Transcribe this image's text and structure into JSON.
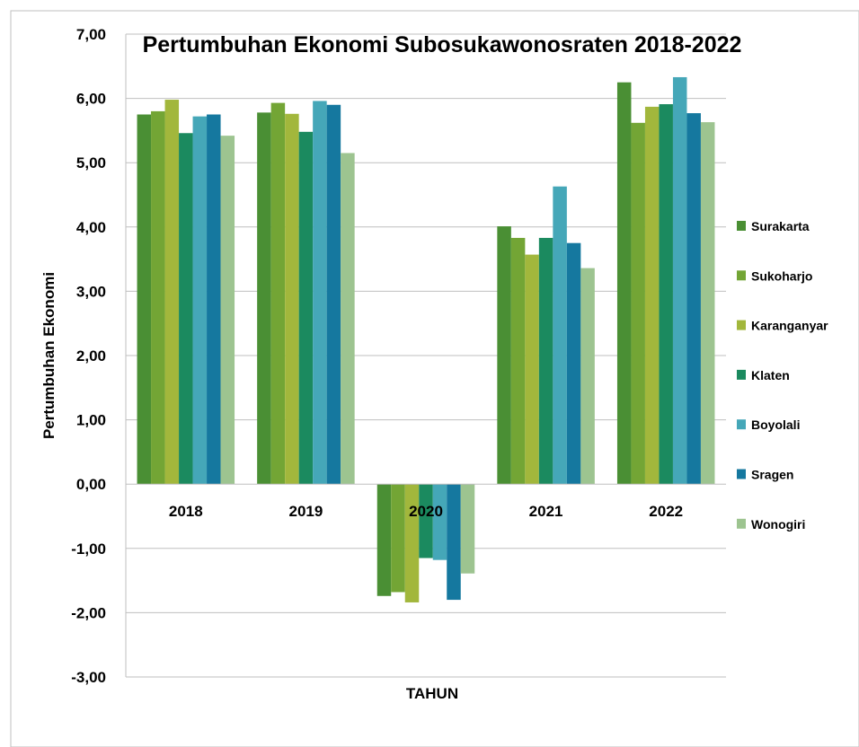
{
  "chart_data": {
    "type": "bar",
    "title": "Pertumbuhan Ekonomi Subosukawonosraten 2018-2022",
    "xlabel": "TAHUN",
    "ylabel": "Pertumbuhan Ekonomi",
    "ylim": [
      -3,
      7
    ],
    "yticks": [
      "7,00",
      "6,00",
      "5,00",
      "4,00",
      "3,00",
      "2,00",
      "1,00",
      "0,00",
      "-1,00",
      "-2,00",
      "-3,00"
    ],
    "categories": [
      "2018",
      "2019",
      "2020",
      "2021",
      "2022"
    ],
    "grid": true,
    "legend_position": "right",
    "series": [
      {
        "name": "Surakarta",
        "color": "#4a8f34",
        "values": [
          5.75,
          5.78,
          -1.74,
          4.01,
          6.25
        ]
      },
      {
        "name": "Sukoharjo",
        "color": "#73a535",
        "values": [
          5.8,
          5.93,
          -1.68,
          3.83,
          5.62
        ]
      },
      {
        "name": "Karanganyar",
        "color": "#a2b73c",
        "values": [
          5.98,
          5.76,
          -1.84,
          3.57,
          5.87
        ]
      },
      {
        "name": "Klaten",
        "color": "#1b8a5f",
        "values": [
          5.46,
          5.48,
          -1.15,
          3.83,
          5.91
        ]
      },
      {
        "name": "Boyolali",
        "color": "#45a7b8",
        "values": [
          5.72,
          5.96,
          -1.18,
          4.63,
          6.33
        ]
      },
      {
        "name": "Sragen",
        "color": "#15789f",
        "values": [
          5.75,
          5.9,
          -1.8,
          3.75,
          5.77
        ]
      },
      {
        "name": "Wonogiri",
        "color": "#9dc490",
        "values": [
          5.42,
          5.15,
          -1.39,
          3.36,
          5.63
        ]
      }
    ]
  }
}
